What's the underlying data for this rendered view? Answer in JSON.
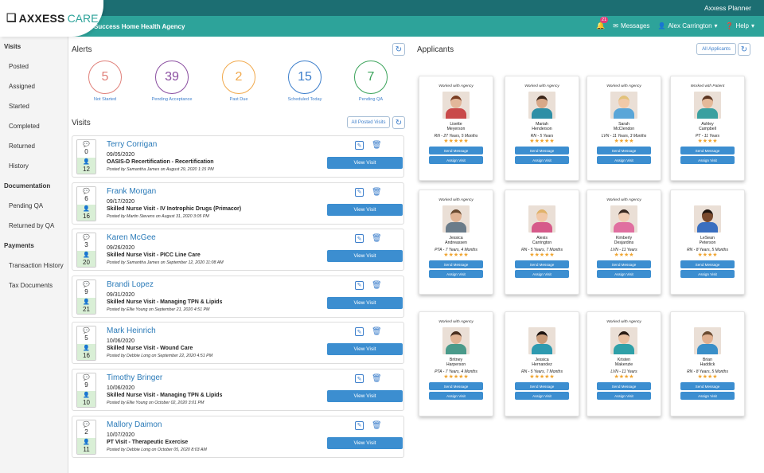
{
  "header": {
    "planner": "Axxess Planner",
    "logo": {
      "brand": "AXXESS",
      "care": "CARE"
    },
    "agency": "Success Home Health Agency",
    "notification_count": "21",
    "messages": "Messages",
    "user": "Alex Carrington",
    "help": "Help"
  },
  "sidebar": {
    "sections": [
      {
        "title": "Visits",
        "items": [
          "Posted",
          "Assigned",
          "Started",
          "Completed",
          "Returned",
          "History"
        ]
      },
      {
        "title": "Documentation",
        "items": [
          "Pending QA",
          "Returned by QA"
        ]
      },
      {
        "title": "Payments",
        "items": [
          "Transaction History",
          "Tax Documents"
        ]
      }
    ]
  },
  "alerts": {
    "title": "Alerts",
    "items": [
      {
        "value": "5",
        "label": "Not Started",
        "color": "#e0807a"
      },
      {
        "value": "39",
        "label": "Pending Acceptance",
        "color": "#8a4ea0"
      },
      {
        "value": "2",
        "label": "Past Due",
        "color": "#f1a94c"
      },
      {
        "value": "15",
        "label": "Scheduled Today",
        "color": "#3c7ecb"
      },
      {
        "value": "7",
        "label": "Pending QA",
        "color": "#3aa35a"
      }
    ]
  },
  "visits": {
    "title": "Visits",
    "all_button": "All Posted Visits",
    "view_label": "View Visit",
    "items": [
      {
        "messages": "0",
        "applicants": "12",
        "name": "Terry Corrigan",
        "date": "09/05/2020",
        "title": "OASIS-D Recertification - Recertification",
        "posted": "Posted by Samantha James on August 29, 2020 1:15 PM"
      },
      {
        "messages": "6",
        "applicants": "16",
        "name": "Frank Morgan",
        "date": "09/17/2020",
        "title": "Skilled Nurse Visit - IV Inotrophic Drugs (Primacor)",
        "posted": "Posted by Martin Stevens on August 31, 2020 3:05 PM"
      },
      {
        "messages": "3",
        "applicants": "20",
        "name": "Karen McGee",
        "date": "09/26/2020",
        "title": "Skilled Nurse Visit - PICC Line Care",
        "posted": "Posted by Samantha James on September 12, 2020 11:08 AM"
      },
      {
        "messages": "9",
        "applicants": "21",
        "name": "Brandi Lopez",
        "date": "09/31/2020",
        "title": "Skilled Nurse Visit - Managing TPN & Lipids",
        "posted": "Posted by Ellie Young on September 21, 2020 4:51 PM"
      },
      {
        "messages": "5",
        "applicants": "16",
        "name": "Mark Heinrich",
        "date": "10/06/2020",
        "title": "Skilled Nurse Visit - Wound Care",
        "posted": "Posted by Debbie Long on September 22, 2020 4:51 PM"
      },
      {
        "messages": "9",
        "applicants": "10",
        "name": "Timothy Bringer",
        "date": "10/06/2020",
        "title": "Skilled Nurse Visit - Managing TPN & Lipids",
        "posted": "Posted by Ellie Young on October 02, 2020 3:01 PM"
      },
      {
        "messages": "2",
        "applicants": "11",
        "name": "Mallory Daimon",
        "date": "10/07/2020",
        "title": "PT Visit - Therapeutic Exercise",
        "posted": "Posted by Debbie Long on October 05, 2020 8:03 AM"
      }
    ]
  },
  "applicants": {
    "title": "Applicants",
    "all_button": "All Applicants",
    "send_label": "Send Message",
    "assign_label": "Assign Visit",
    "items": [
      {
        "tag": "Worked with Agency",
        "first": "Lisette",
        "last": "Meyerson",
        "role": "RN - 27 Years, 5 Months",
        "rating": 5,
        "skin": "#e2b79a",
        "hair": "#7a3d22",
        "scrub": "#c94a4a"
      },
      {
        "tag": "Worked with Agency",
        "first": "Mariah",
        "last": "Henderson",
        "role": "RN - 5 Years",
        "rating": 5,
        "skin": "#d8a888",
        "hair": "#3a2418",
        "scrub": "#2e8fa6"
      },
      {
        "tag": "Worked with Agency",
        "first": "Sarah",
        "last": "McClendon",
        "role": "LVN - 11 Years, 3 Months",
        "rating": 4,
        "skin": "#f0c9a8",
        "hair": "#e2c27a",
        "scrub": "#5aa6d8"
      },
      {
        "tag": "Worked with Patient",
        "first": "Ashley",
        "last": "Campbell",
        "role": "PT - 11 Years",
        "rating": 4,
        "skin": "#e4b999",
        "hair": "#5a3420",
        "scrub": "#3aa0a0"
      },
      {
        "tag": "Worked with Agency",
        "first": "Jessica",
        "last": "Andreassen",
        "role": "PTA - 7 Years, 4 Months",
        "rating": 5,
        "skin": "#e0b394",
        "hair": "#6a4a30",
        "scrub": "#6b7c8a"
      },
      {
        "tag": "",
        "first": "Alexis",
        "last": "Carrington",
        "role": "RN - 5 Years, 7 Months",
        "rating": 5,
        "skin": "#f1c8a8",
        "hair": "#e0b26a",
        "scrub": "#d65a8a"
      },
      {
        "tag": "Worked with Agency",
        "first": "Kimberly",
        "last": "Desjardins",
        "role": "LVN - 11 Years",
        "rating": 4,
        "skin": "#f0cdb4",
        "hair": "#3a2a22",
        "scrub": "#e06fa0"
      },
      {
        "tag": "",
        "first": "LeSean",
        "last": "Peterson",
        "role": "RN - 8 Years, 5 Months",
        "rating": 4,
        "skin": "#7a4a2e",
        "hair": "#1e140e",
        "scrub": "#3a6fc0"
      },
      {
        "tag": "Worked with Agency",
        "first": "Britney",
        "last": "Harperson",
        "role": "PTA - 7 Years, 4 Months",
        "rating": 5,
        "skin": "#e0b394",
        "hair": "#4a3020",
        "scrub": "#4a9a8a"
      },
      {
        "tag": "",
        "first": "Jessica",
        "last": "Hernandez",
        "role": "RN - 5 Years, 7 Months",
        "rating": 5,
        "skin": "#c89a78",
        "hair": "#1e1410",
        "scrub": "#2e9ab0"
      },
      {
        "tag": "Worked with Agency",
        "first": "Kristen",
        "last": "Makenzie",
        "role": "LVN - 11 Years",
        "rating": 4,
        "skin": "#e8bfa0",
        "hair": "#2a1c14",
        "scrub": "#2fa0a8"
      },
      {
        "tag": "",
        "first": "Brian",
        "last": "Haddick",
        "role": "RN - 8 Years, 5 Months",
        "rating": 4,
        "skin": "#e0b090",
        "hair": "#6a4a30",
        "scrub": "#3a8fc8"
      }
    ]
  }
}
